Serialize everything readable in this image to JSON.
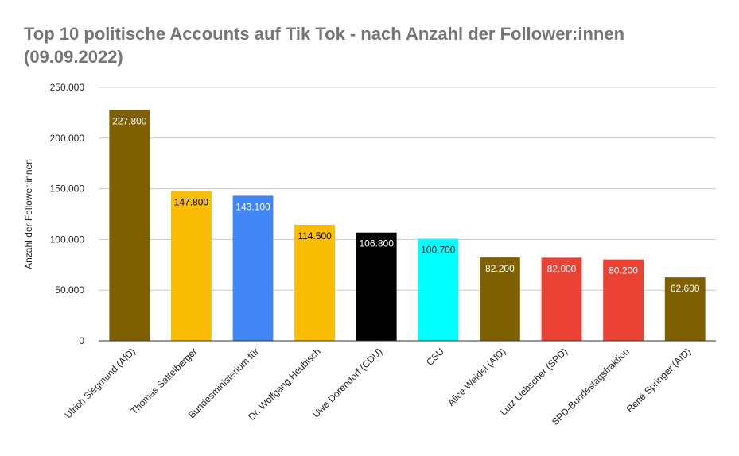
{
  "chart_data": {
    "type": "bar",
    "title_line1": "Top 10 politische Accounts auf Tik Tok - nach Anzahl der Follower:innen",
    "title_line2": "(09.09.2022)",
    "xlabel": "",
    "ylabel": "Anzahl der Follower:innen",
    "ylim": [
      0,
      250000
    ],
    "yticks": [
      0,
      50000,
      100000,
      150000,
      200000,
      250000
    ],
    "ytick_labels": [
      "0",
      "50.000",
      "100.000",
      "150.000",
      "200.000",
      "250.000"
    ],
    "grid": true,
    "categories": [
      "Ulrich Siegmund (AfD)",
      "Thomas Sattelberger",
      "Bundesministerium für",
      "Dr. Wolfgang Heubisch",
      "Uwe Dorendorf (CDU)",
      "CSU",
      "Alice Weidel (AfD)",
      "Lutz Liebscher (SPD)",
      "SPD-Bundestagsfraktion",
      "René Springer (AfD)"
    ],
    "values": [
      227800,
      147800,
      143100,
      114500,
      106800,
      100700,
      82200,
      82000,
      80200,
      62600
    ],
    "value_labels": [
      "227.800",
      "147.800",
      "143.100",
      "114.500",
      "106.800",
      "100.700",
      "82.200",
      "82.000",
      "80.200",
      "62.600"
    ],
    "colors": [
      "#7f6000",
      "#fbbc04",
      "#4285f4",
      "#fbbc04",
      "#000000",
      "#00ffff",
      "#7f6000",
      "#ea4335",
      "#ea4335",
      "#7f6000"
    ],
    "label_colors": [
      "#ffffff",
      "#000000",
      "#ffffff",
      "#000000",
      "#ffffff",
      "#222222",
      "#ffffff",
      "#ffffff",
      "#ffffff",
      "#ffffff"
    ]
  }
}
